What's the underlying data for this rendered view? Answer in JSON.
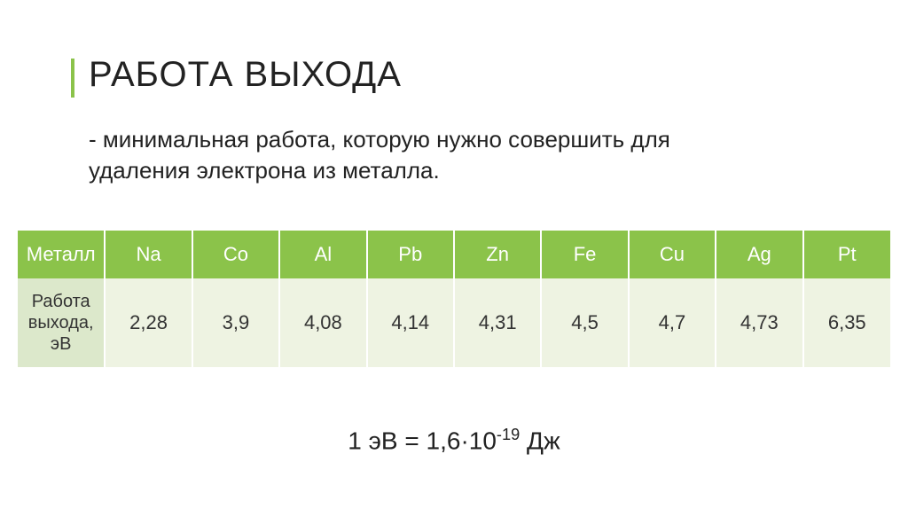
{
  "title": "РАБОТА ВЫХОДА",
  "subtitle": "- минимальная работа, которую нужно совершить для удаления электрона из металла.",
  "table": {
    "header_label": "Металл",
    "row_label": "Работа выхода, эВ",
    "columns": [
      "Na",
      "Co",
      "Al",
      "Pb",
      "Zn",
      "Fe",
      "Cu",
      "Ag",
      "Pt"
    ],
    "values": [
      "2,28",
      "3,9",
      "4,08",
      "4,14",
      "4,31",
      "4,5",
      "4,7",
      "4,73",
      "6,35"
    ],
    "header_bg": "#8bc34a",
    "header_fg": "#ffffff",
    "rowlabel_bg": "#dce8cb",
    "value_bg": "#eef3e2",
    "text_color": "#333333",
    "border_color": "#ffffff"
  },
  "formula": {
    "prefix": "1 эВ = 1,6·10",
    "exp": "-19",
    "suffix": " Дж"
  },
  "accent_color": "#8bc34a",
  "background_color": "#ffffff",
  "title_fontsize": 40,
  "subtitle_fontsize": 26,
  "cell_fontsize": 22,
  "formula_fontsize": 28
}
